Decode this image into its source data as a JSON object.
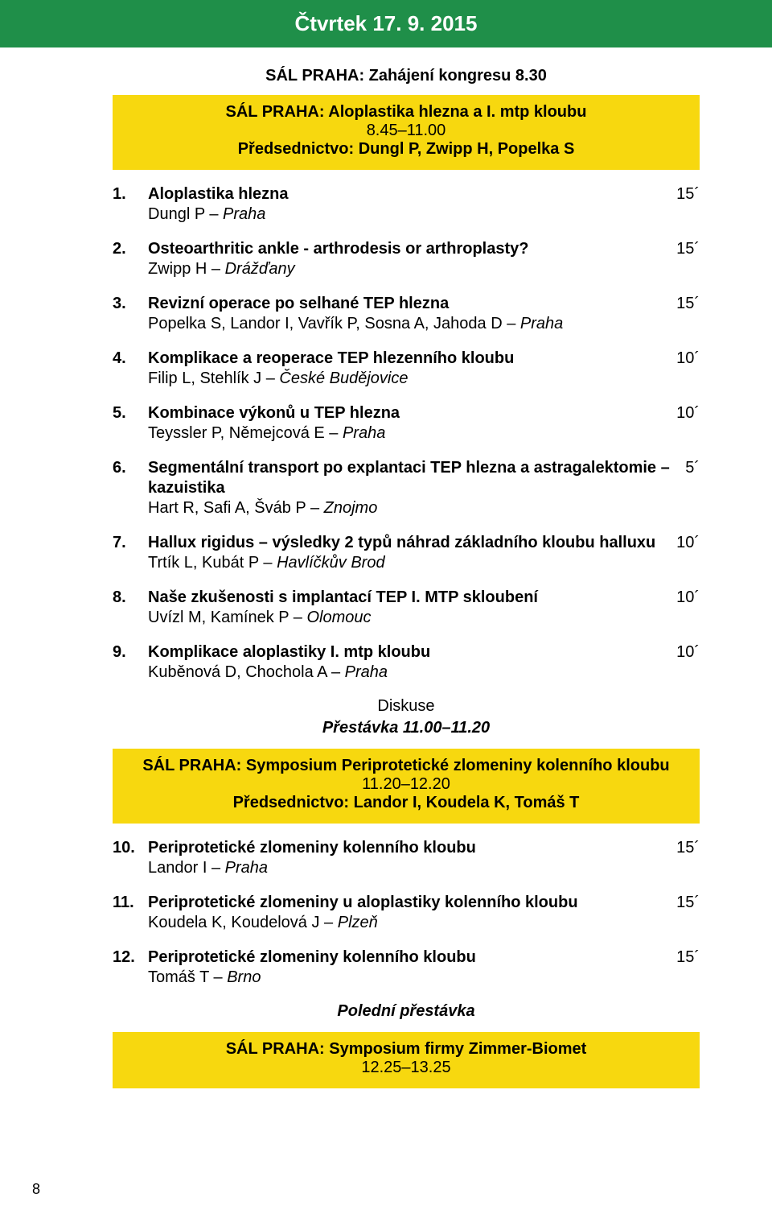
{
  "header": {
    "title": "Čtvrtek 17. 9. 2015"
  },
  "line1": "SÁL PRAHA: Zahájení kongresu 8.30",
  "sessionA": {
    "title": "SÁL PRAHA: Aloplastika hlezna a I. mtp kloubu",
    "time": "8.45–11.00",
    "chair": "Předsednictvo: Dungl P, Zwipp H, Popelka S"
  },
  "itemsA": [
    {
      "n": "1.",
      "t": "Aloplastika hlezna",
      "a": "Dungl P – ",
      "loc": "Praha",
      "d": "15´"
    },
    {
      "n": "2.",
      "t": "Osteoarthritic ankle - arthrodesis or arthroplasty?",
      "a": "Zwipp H – ",
      "loc": "Drážďany",
      "d": "15´"
    },
    {
      "n": "3.",
      "t": "Revizní operace po selhané TEP hlezna",
      "a": "Popelka S, Landor I, Vavřík P, Sosna A, Jahoda D – ",
      "loc": "Praha",
      "d": "15´"
    },
    {
      "n": "4.",
      "t": "Komplikace a reoperace TEP hlezenního kloubu",
      "a": "Filip L, Stehlík J – ",
      "loc": "České Budějovice",
      "d": "10´"
    },
    {
      "n": "5.",
      "t": "Kombinace výkonů u TEP hlezna",
      "a": "Teyssler P, Němejcová E – ",
      "loc": "Praha",
      "d": "10´"
    },
    {
      "n": "6.",
      "t": "Segmentální transport po explantaci TEP hlezna a astragalektomie – kazuistika",
      "a": "Hart R, Safi A, Šváb P – ",
      "loc": "Znojmo",
      "d": "5´"
    },
    {
      "n": "7.",
      "t": "Hallux rigidus – výsledky 2 typů náhrad základního kloubu halluxu",
      "a": "Trtík L, Kubát P – ",
      "loc": "Havlíčkův Brod",
      "d": "10´"
    },
    {
      "n": "8.",
      "t": "Naše zkušenosti s implantací TEP I. MTP skloubení",
      "a": "Uvízl M, Kamínek P – ",
      "loc": "Olomouc",
      "d": "10´"
    },
    {
      "n": "9.",
      "t": "Komplikace aloplastiky I. mtp kloubu",
      "a": "Kuběnová D, Chochola A – ",
      "loc": "Praha",
      "d": "10´"
    }
  ],
  "discussion": "Diskuse",
  "break1": "Přestávka 11.00–11.20",
  "sessionB": {
    "title": "SÁL PRAHA: Symposium Periprotetické zlomeniny kolenního kloubu",
    "time": "11.20–12.20",
    "chair": "Předsednictvo: Landor I, Koudela K, Tomáš T"
  },
  "itemsB": [
    {
      "n": "10.",
      "t": "Periprotetické zlomeniny kolenního kloubu",
      "a": "Landor I – ",
      "loc": "Praha",
      "d": "15´"
    },
    {
      "n": "11.",
      "t": "Periprotetické zlomeniny u aloplastiky kolenního kloubu",
      "a": "Koudela K, Koudelová J – ",
      "loc": "Plzeň",
      "d": "15´"
    },
    {
      "n": "12.",
      "t": "Periprotetické zlomeniny kolenního kloubu",
      "a": "Tomáš T – ",
      "loc": "Brno",
      "d": "15´"
    }
  ],
  "lunch": "Polední přestávka",
  "sessionC": {
    "title": "SÁL PRAHA: Symposium firmy Zimmer-Biomet",
    "time": "12.25–13.25"
  },
  "pageNum": "8",
  "colors": {
    "green": "#1f8f49",
    "yellow": "#f7d80f"
  }
}
